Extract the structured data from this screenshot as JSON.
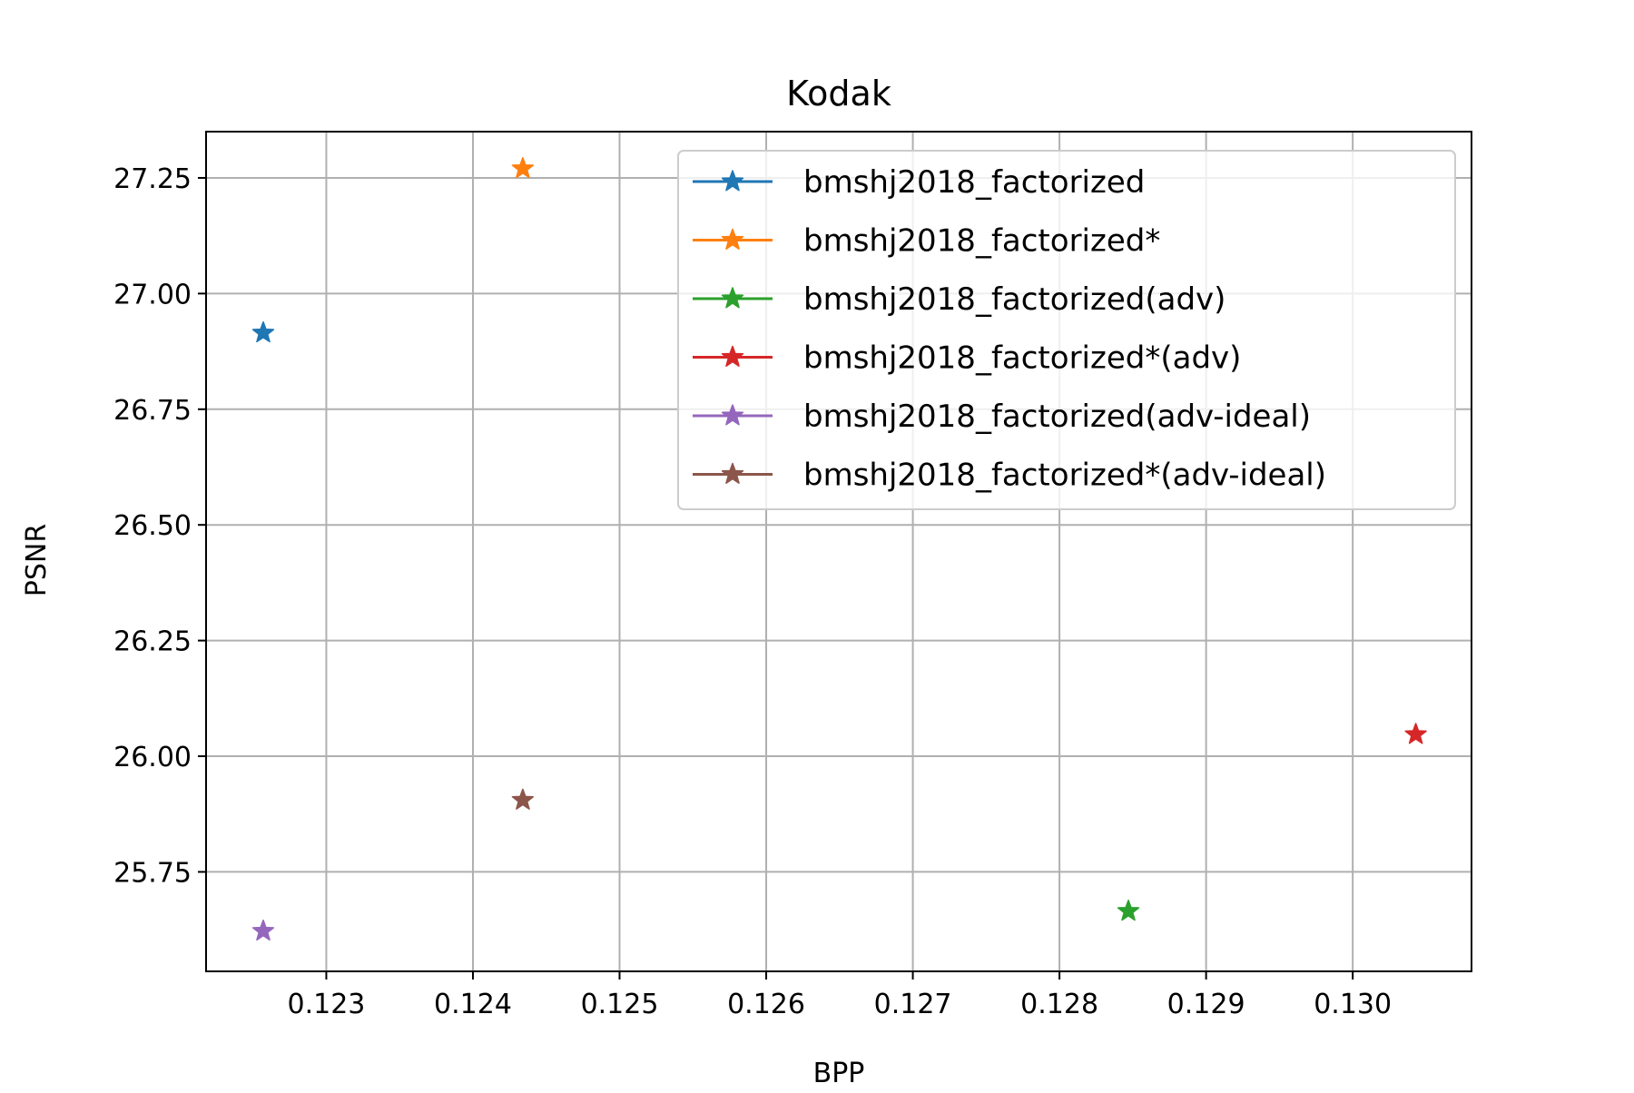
{
  "chart_data": {
    "type": "scatter",
    "title": "Kodak",
    "xlabel": "BPP",
    "ylabel": "PSNR",
    "xlim": [
      0.12218,
      0.13081
    ],
    "ylim": [
      25.535,
      27.35
    ],
    "xticks": [
      0.123,
      0.124,
      0.125,
      0.126,
      0.127,
      0.128,
      0.129,
      0.13
    ],
    "xtick_labels": [
      "0.123",
      "0.124",
      "0.125",
      "0.126",
      "0.127",
      "0.128",
      "0.129",
      "0.130"
    ],
    "yticks": [
      25.75,
      26.0,
      26.25,
      26.5,
      26.75,
      27.0,
      27.25
    ],
    "ytick_labels": [
      "25.75",
      "26.00",
      "26.25",
      "26.50",
      "26.75",
      "27.00",
      "27.25"
    ],
    "grid": true,
    "marker": "star",
    "legend_position": "top-right",
    "series": [
      {
        "name": "bmshj2018_factorized",
        "color": "#1f77b4",
        "x": [
          0.12257
        ],
        "y": [
          26.915
        ]
      },
      {
        "name": "bmshj2018_factorized*",
        "color": "#ff7f0e",
        "x": [
          0.12434
        ],
        "y": [
          27.27
        ]
      },
      {
        "name": "bmshj2018_factorized(adv)",
        "color": "#2ca02c",
        "x": [
          0.12847
        ],
        "y": [
          25.665
        ]
      },
      {
        "name": "bmshj2018_factorized*(adv)",
        "color": "#d62728",
        "x": [
          0.13043
        ],
        "y": [
          26.047
        ]
      },
      {
        "name": "bmshj2018_factorized(adv-ideal)",
        "color": "#9467bd",
        "x": [
          0.12257
        ],
        "y": [
          25.622
        ]
      },
      {
        "name": "bmshj2018_factorized*(adv-ideal)",
        "color": "#8c564b",
        "x": [
          0.12434
        ],
        "y": [
          25.905
        ]
      }
    ]
  }
}
